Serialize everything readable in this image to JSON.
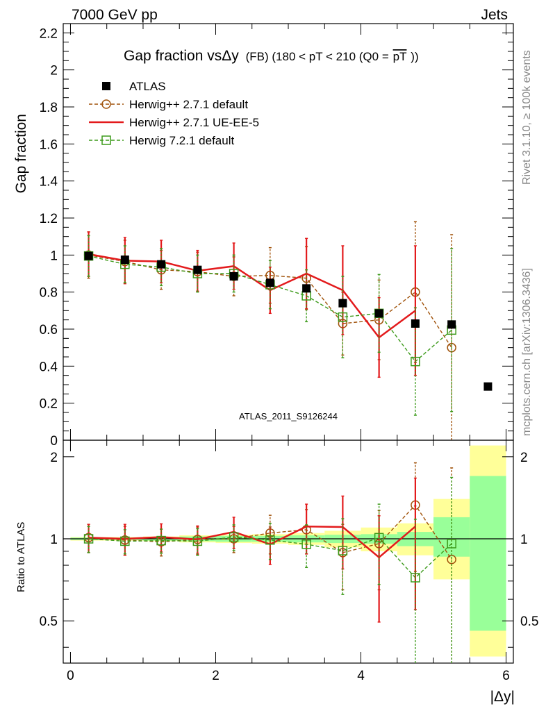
{
  "header": {
    "left": "7000 GeV pp",
    "right": "Jets"
  },
  "side_labels": {
    "upper": "Rivet 3.1.10, ≥ 100k events",
    "lower": "mcplots.cern.ch [arXiv:1306.3436]"
  },
  "chart_data": [
    {
      "type": "scatter",
      "panel": "main",
      "title_main": "Gap fraction vsΔy",
      "title_small": "(FB) (180 < pT < 210 (Q0 =",
      "title_pt": "pT",
      "title_close": "))",
      "xlabel": "|Δy|",
      "ylabel": "Gap fraction",
      "xlim": [
        -0.1,
        6.1
      ],
      "ylim": [
        0,
        2.25
      ],
      "yticks": [
        0,
        0.2,
        0.4,
        0.6,
        0.8,
        1,
        1.2,
        1.4,
        1.6,
        1.8,
        2,
        2.2
      ],
      "ytick_labels": [
        "0",
        "0.2",
        "0.4",
        "0.6",
        "0.8",
        "1",
        "1.2",
        "1.4",
        "1.6",
        "1.8",
        "2",
        "2.2"
      ],
      "watermark": "ATLAS_2011_S9126244",
      "legend_position": "top-left",
      "legend": [
        {
          "label": "ATLAS",
          "color": "#000000"
        },
        {
          "label": "Herwig++ 2.7.1 default",
          "color": "#a0520a"
        },
        {
          "label": "Herwig++ 2.7.1 UE-EE-5",
          "color": "#e31a1c"
        },
        {
          "label": "Herwig 7.2.1 default",
          "color": "#3c9a1a"
        }
      ],
      "x": [
        0.25,
        0.75,
        1.25,
        1.75,
        2.25,
        2.75,
        3.25,
        3.75,
        4.25,
        4.75,
        5.25,
        5.75
      ],
      "series": [
        {
          "name": "ATLAS",
          "values": [
            0.995,
            0.975,
            0.95,
            0.92,
            0.885,
            0.85,
            0.82,
            0.74,
            0.685,
            0.63,
            0.625,
            0.29
          ]
        },
        {
          "name": "Herwig++ 2.7.1 default",
          "values": [
            1.0,
            0.965,
            0.92,
            0.91,
            0.885,
            0.89,
            0.875,
            0.63,
            0.65,
            0.8,
            0.5
          ],
          "errors": [
            0.125,
            0.115,
            0.105,
            0.105,
            0.105,
            0.15,
            0.17,
            0.17,
            0.215,
            0.38,
            0.61
          ]
        },
        {
          "name": "Herwig++ 2.7.1 UE-EE-5",
          "values": [
            1.005,
            0.97,
            0.965,
            0.915,
            0.94,
            0.81,
            0.9,
            0.81,
            0.555,
            0.7,
            null
          ],
          "errors": [
            0.12,
            0.125,
            0.115,
            0.11,
            0.125,
            0.125,
            0.19,
            0.24,
            0.215,
            0.35,
            null
          ]
        },
        {
          "name": "Herwig 7.2.1 default",
          "values": [
            0.995,
            0.95,
            0.935,
            0.9,
            0.9,
            0.84,
            0.78,
            0.665,
            0.685,
            0.425,
            0.595
          ],
          "errors": [
            0.11,
            0.1,
            0.1,
            0.1,
            0.1,
            0.13,
            0.14,
            0.22,
            0.21,
            0.29,
            0.44
          ]
        }
      ]
    },
    {
      "type": "scatter",
      "panel": "ratio",
      "ylabel": "Ratio to ATLAS",
      "xlabel": "|Δy|",
      "xlim": [
        -0.1,
        6.1
      ],
      "ylim": [
        0.35,
        2.3
      ],
      "yscale": "log",
      "yticks": [
        0.5,
        1,
        2
      ],
      "ytick_labels": [
        "0.5",
        "1",
        "2"
      ],
      "xticks": [
        0,
        2,
        4,
        6
      ],
      "xtick_labels": [
        "0",
        "2",
        "4",
        "6"
      ],
      "x": [
        0.25,
        0.75,
        1.25,
        1.75,
        2.25,
        2.75,
        3.25,
        3.75,
        4.25,
        4.75,
        5.25
      ],
      "bands": {
        "edges": [
          0,
          0.5,
          1,
          1.5,
          2,
          2.5,
          3,
          3.5,
          4,
          4.5,
          5,
          5.5,
          6
        ],
        "stat_low": [
          0.99,
          0.99,
          0.985,
          0.98,
          0.975,
          0.975,
          0.97,
          0.965,
          0.96,
          0.94,
          0.86,
          0.46
        ],
        "stat_high": [
          1.01,
          1.01,
          1.015,
          1.02,
          1.025,
          1.025,
          1.03,
          1.035,
          1.04,
          1.06,
          1.2,
          1.7
        ],
        "total_low": [
          0.985,
          0.985,
          0.98,
          0.97,
          0.965,
          0.96,
          0.95,
          0.93,
          0.9,
          0.87,
          0.71,
          0.37
        ],
        "total_high": [
          1.015,
          1.015,
          1.02,
          1.03,
          1.035,
          1.04,
          1.05,
          1.07,
          1.1,
          1.14,
          1.4,
          2.2
        ],
        "stat_color": "#99ff99",
        "total_color": "#ffff99"
      },
      "series": [
        {
          "name": "Herwig++ 2.7.1 default",
          "values": [
            1.01,
            0.99,
            0.975,
            0.995,
            1.0,
            1.05,
            1.08,
            0.89,
            0.96,
            1.33,
            0.84
          ],
          "errors": [
            0.12,
            0.12,
            0.11,
            0.11,
            0.11,
            0.17,
            0.2,
            0.24,
            0.31,
            0.57,
            0.98
          ]
        },
        {
          "name": "Herwig++ 2.7.1 UE-EE-5",
          "values": [
            1.01,
            1.0,
            1.015,
            0.995,
            1.06,
            0.955,
            1.11,
            1.105,
            0.855,
            1.11,
            null
          ],
          "errors": [
            0.12,
            0.13,
            0.12,
            0.12,
            0.14,
            0.15,
            0.23,
            0.33,
            0.36,
            0.56,
            null
          ]
        },
        {
          "name": "Herwig 7.2.1 default",
          "values": [
            1.0,
            0.98,
            0.985,
            0.98,
            1.015,
            0.99,
            0.955,
            0.905,
            1.01,
            0.72,
            0.96
          ],
          "errors": [
            0.11,
            0.1,
            0.1,
            0.11,
            0.11,
            0.15,
            0.17,
            0.28,
            0.33,
            0.46,
            0.72
          ]
        }
      ]
    }
  ]
}
